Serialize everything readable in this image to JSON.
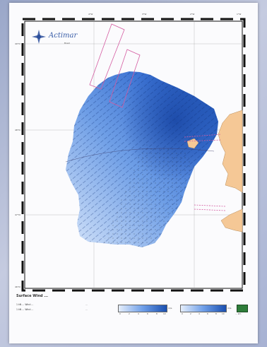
{
  "logo": {
    "text": "Actimar",
    "sub": "Brest"
  },
  "axes": {
    "top_ticks": [
      "4°W",
      "3°W",
      "2°W",
      "1°W"
    ],
    "left_ticks": [
      "49°N",
      "48°N",
      "47°N",
      "46°N"
    ]
  },
  "legend": {
    "title": "Surface Wind ...",
    "line1": "1 kN ... Wind ...",
    "line2": "1 kN ... Wind ...",
    "mid1": "...",
    "mid2": "...",
    "colorbar1": {
      "ticks": [
        "0",
        "2",
        "4",
        "6",
        "8",
        "10"
      ],
      "unit": "m/s"
    },
    "colorbar2": {
      "ticks": [
        "0",
        "2",
        "4",
        "6",
        "8",
        "10"
      ],
      "unit": "m/s"
    },
    "scale_text": "... km"
  },
  "colors": {
    "ocean_light": "#e3ecfa",
    "ocean_dark": "#1a4fb0",
    "land": "#f5c896",
    "track": "#d45aa0",
    "frame": "#000000"
  }
}
